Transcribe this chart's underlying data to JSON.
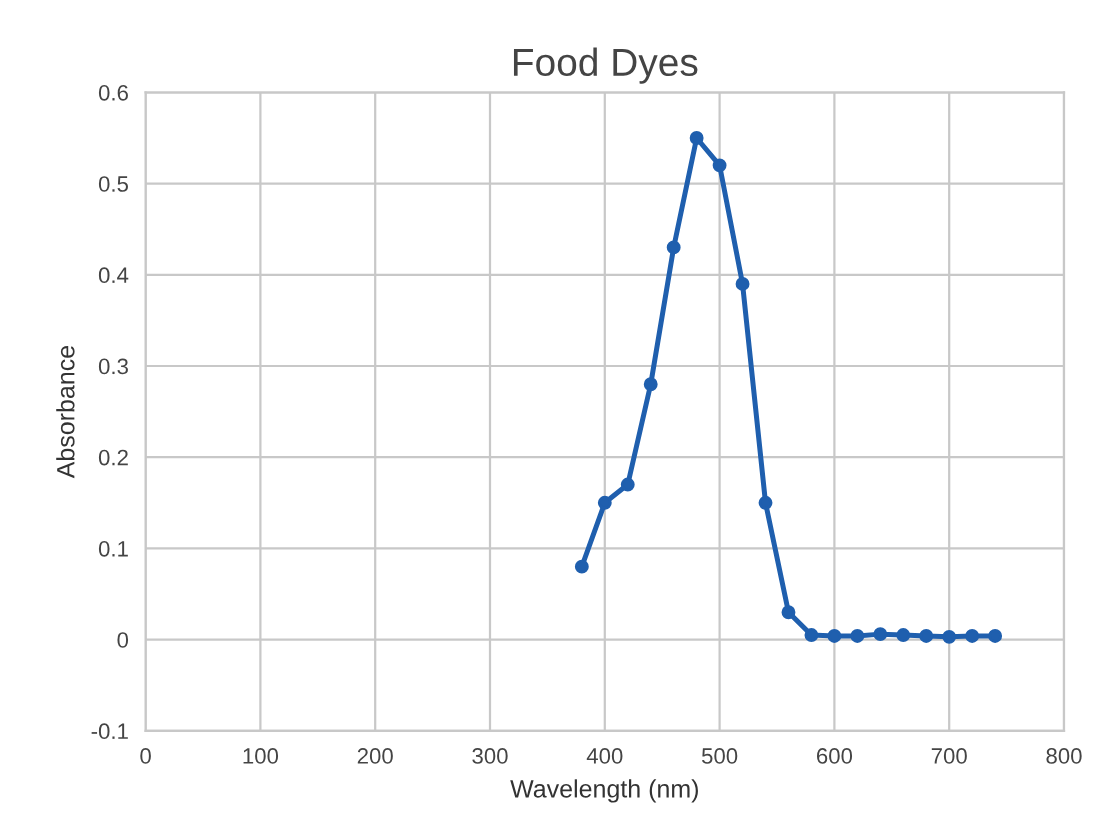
{
  "chart_data": {
    "type": "line",
    "title": "Food Dyes",
    "xlabel": "Wavelength (nm)",
    "ylabel": "Absorbance",
    "series": [
      {
        "color": "#1f5fae",
        "x": [
          380,
          400,
          420,
          440,
          460,
          480,
          500,
          520,
          540,
          560,
          580,
          600,
          620,
          640,
          660,
          680,
          700,
          720,
          740
        ],
        "values": [
          0.08,
          0.15,
          0.17,
          0.28,
          0.43,
          0.55,
          0.52,
          0.39,
          0.15,
          0.03,
          0.005,
          0.004,
          0.004,
          0.006,
          0.005,
          0.004,
          0.003,
          0.004,
          0.004
        ]
      }
    ],
    "xlim": [
      0,
      800
    ],
    "xticks": [
      0,
      100,
      200,
      300,
      400,
      500,
      600,
      700,
      800
    ],
    "ylim": [
      -0.1,
      0.6
    ],
    "yticks": [
      -0.1,
      0,
      0.1,
      0.2,
      0.3,
      0.4,
      0.5,
      0.6
    ],
    "grid": true,
    "marker": "circle",
    "line_style": "solid"
  }
}
